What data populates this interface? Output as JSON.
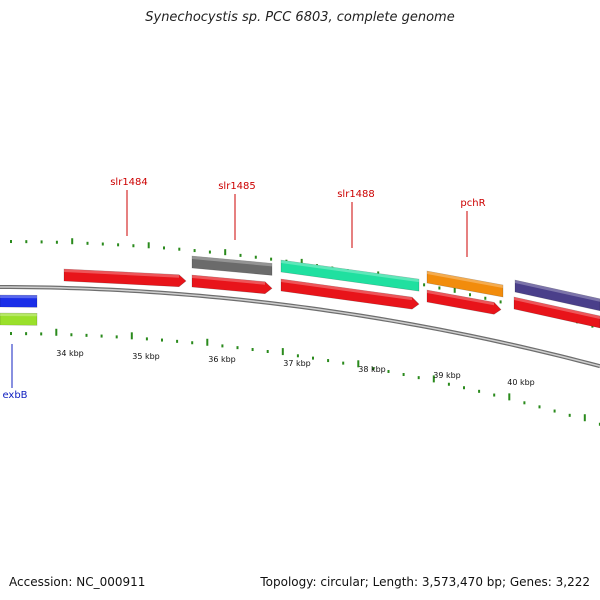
{
  "title": "Synechocystis sp. PCC 6803, complete genome",
  "accession": "Accession: NC_000911",
  "summary": "Topology: circular; Length: 3,573,470 bp; Genes: 3,222",
  "colors": {
    "red": "#e8141a",
    "gray": "#6b6b6b",
    "teal": "#20e0a0",
    "orange": "#f28c0c",
    "purple": "#4a3f8a",
    "blue": "#1a2ee8",
    "lime": "#9ae02a",
    "tick": "#2a8a1c",
    "label_red": "#cc0000",
    "label_blue": "#1020c0",
    "backbone": "#888888"
  },
  "ruler_labels": [
    "34 kbp",
    "35 kbp",
    "36 kbp",
    "37 kbp",
    "38 kbp",
    "39 kbp",
    "40 kbp"
  ],
  "gene_labels": [
    {
      "name": "slr1484",
      "color": "red"
    },
    {
      "name": "slr1485",
      "color": "red"
    },
    {
      "name": "slr1488",
      "color": "red"
    },
    {
      "name": "pchR",
      "color": "red"
    },
    {
      "name": "exbB",
      "color": "blue"
    }
  ]
}
